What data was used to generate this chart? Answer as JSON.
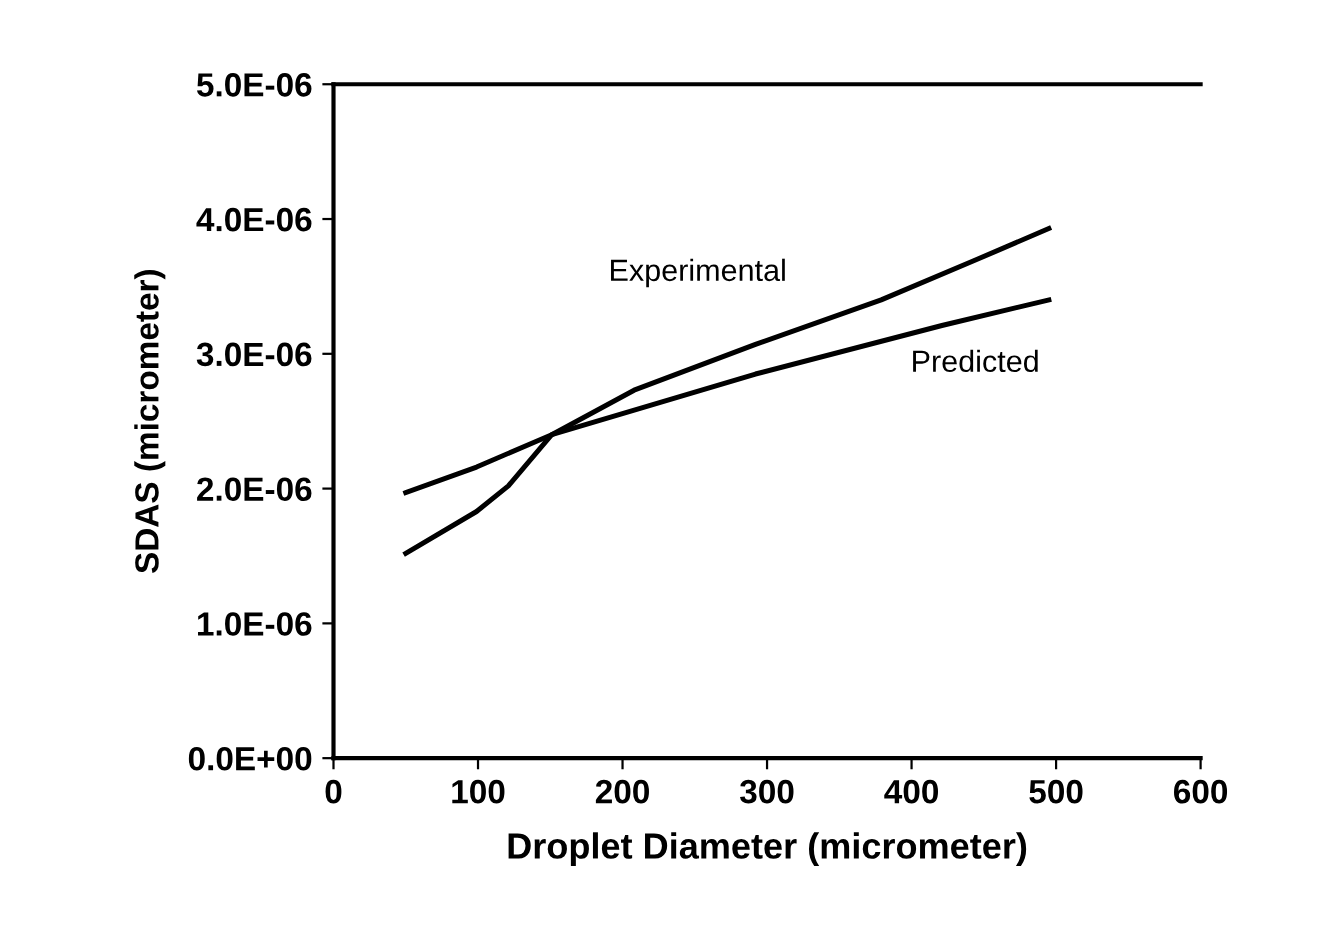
{
  "chart_data": {
    "type": "line",
    "xlabel": "Droplet Diameter (micrometer)",
    "ylabel": "SDAS (micrometer)",
    "xlim": [
      0,
      600
    ],
    "xticks": [
      0,
      100,
      200,
      300,
      400,
      500,
      600
    ],
    "ylim": [
      0,
      5e-06
    ],
    "yticks": [
      {
        "value": 0,
        "label": "0.0E+00"
      },
      {
        "value": 1e-06,
        "label": "1.0E-06"
      },
      {
        "value": 2e-06,
        "label": "2.0E-06"
      },
      {
        "value": 3e-06,
        "label": "3.0E-06"
      },
      {
        "value": 4e-06,
        "label": "4.0E-06"
      },
      {
        "value": 5e-06,
        "label": "5.0E-06"
      }
    ],
    "grid": false,
    "legend": false,
    "marker": "none",
    "line_style": "solid",
    "series": [
      {
        "name": "Experimental",
        "color": "#000000",
        "x": [
          50,
          99,
          121,
          151,
          208,
          292,
          379,
          443,
          495
        ],
        "values": [
          1.52e-06,
          1.83e-06,
          2.02e-06,
          2.4e-06,
          2.73e-06,
          3.07e-06,
          3.4e-06,
          3.69e-06,
          3.93e-06
        ]
      },
      {
        "name": "Predicted",
        "color": "#000000",
        "x": [
          50,
          99,
          151,
          292,
          421,
          495
        ],
        "values": [
          1.97e-06,
          2.16e-06,
          2.4e-06,
          2.85e-06,
          3.21e-06,
          3.4e-06
        ]
      }
    ]
  }
}
